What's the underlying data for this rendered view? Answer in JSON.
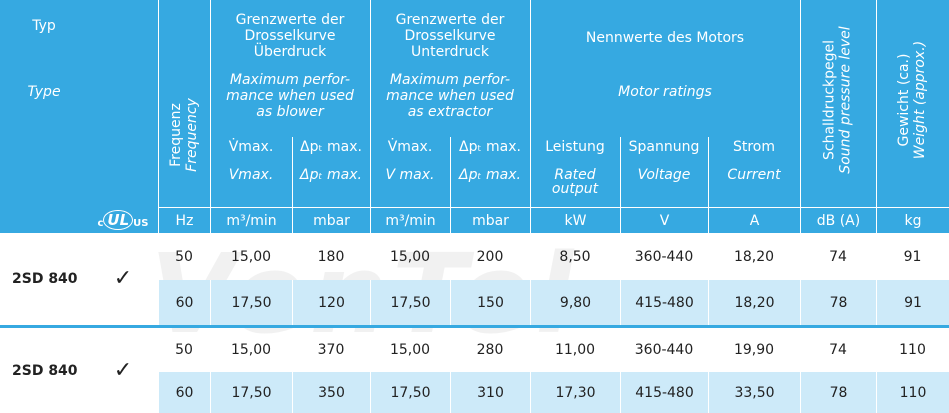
{
  "header": {
    "typ": "Typ",
    "type": "Type",
    "freq": [
      "Frequenz",
      "Frequency"
    ],
    "groups": [
      {
        "de": [
          "Grenzwerte der",
          "Drosselkurve",
          "Überdruck"
        ],
        "en": [
          "Maximum perfor-",
          "mance when used",
          "as blower"
        ]
      },
      {
        "de": [
          "Grenzwerte der",
          "Drosselkurve",
          "Unterdruck"
        ],
        "en": [
          "Maximum perfor-",
          "mance when used",
          "as extractor"
        ]
      },
      {
        "de": [
          "Nennwerte des Motors"
        ],
        "en": [
          "Motor ratings"
        ]
      }
    ],
    "noise": [
      "Schalldruckpegel",
      "Sound pressure level"
    ],
    "weight": [
      "Gewicht (ca.)",
      "Weight (approx.)"
    ],
    "sub": [
      {
        "de": "V̇max.",
        "en": "Vmax."
      },
      {
        "de": "Δpₜ max.",
        "en": "Δpₜ max."
      },
      {
        "de": "V̇max.",
        "en": "V max."
      },
      {
        "de": "Δpₜ max.",
        "en": "Δpₜ max."
      },
      {
        "de": "Leistung",
        "en": "Rated output"
      },
      {
        "de": "Spannung",
        "en": "Voltage"
      },
      {
        "de": "Strom",
        "en": "Current"
      }
    ],
    "logo": {
      "c": "c",
      "ul": "UL",
      "us": "US"
    },
    "units": [
      "Hz",
      "m³/min",
      "mbar",
      "m³/min",
      "mbar",
      "kW",
      "V",
      "A",
      "dB (A)",
      "kg"
    ]
  },
  "watermark": "VenTel",
  "models": [
    {
      "type": "2SD 840",
      "check": "✓",
      "rows": [
        [
          "50",
          "15,00",
          "180",
          "15,00",
          "200",
          "8,50",
          "360-440",
          "18,20",
          "74",
          "91"
        ],
        [
          "60",
          "17,50",
          "120",
          "17,50",
          "150",
          "9,80",
          "415-480",
          "18,20",
          "78",
          "91"
        ]
      ]
    },
    {
      "type": "2SD 840",
      "check": "✓",
      "rows": [
        [
          "50",
          "15,00",
          "370",
          "15,00",
          "280",
          "11,00",
          "360-440",
          "19,90",
          "74",
          "110"
        ],
        [
          "60",
          "17,50",
          "350",
          "17,50",
          "310",
          "17,30",
          "415-480",
          "33,50",
          "78",
          "110"
        ]
      ]
    }
  ]
}
